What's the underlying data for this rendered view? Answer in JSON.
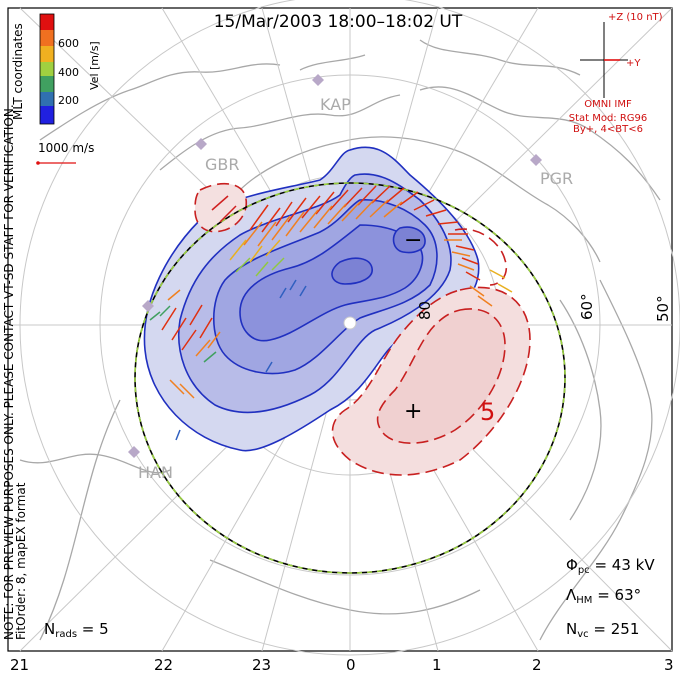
{
  "title": "15/Mar/2003 18:00–18:02 UT",
  "side_note": "NOTE: FOR PREVIEW PURPOSES ONLY. PLEASE CONTACT VT-SD STAFF FOR VERIFICATION.",
  "fit_info": "FitOrder: 8, mapEX format",
  "coord_label": "MLT coordinates",
  "colorbar": {
    "label": "Vel [m/s]",
    "ticks": [
      "600",
      "400",
      "200"
    ],
    "colors": [
      "#e01010",
      "#f07020",
      "#f0b020",
      "#a0d040",
      "#40a060",
      "#3070b0",
      "#2020e0"
    ]
  },
  "ref_vector_label": "1000 m/s",
  "imf": {
    "z_label": "+Z (10 nT)",
    "y_label": "+Y",
    "source": "OMNI IMF",
    "model": "Stat Mod: RG96",
    "condition": "By+, 4<BT<6"
  },
  "stations": [
    "KAP",
    "GBR",
    "PGR",
    "HAN"
  ],
  "lat_labels": [
    "80",
    "60°",
    "50°"
  ],
  "contour_labels": [
    "−",
    "+",
    "5"
  ],
  "mlt_axis": [
    "21",
    "22",
    "23",
    "0",
    "1",
    "2",
    "3"
  ],
  "stats": {
    "phi_symbol": "Φ",
    "phi_sub": "pc",
    "phi_value": " = 43 kV",
    "lambda_symbol": "Λ",
    "lambda_sub": "HM",
    "lambda_value": " = 63°",
    "nvc_symbol": "N",
    "nvc_sub": "vc",
    "nvc_value": " = 251",
    "nrads_symbol": "N",
    "nrads_sub": "rads",
    "nrads_value": " = 5"
  }
}
